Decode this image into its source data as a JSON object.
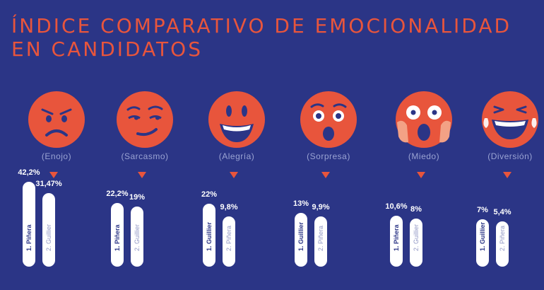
{
  "title": {
    "line1": "ÍNDICE COMPARATIVO DE EMOCIONALIDAD",
    "line2": "EN CANDIDATOS"
  },
  "colors": {
    "background": "#2b3586",
    "accent": "#e8553c",
    "bar": "#ffffff",
    "label": "#9aa3d3"
  },
  "chart_data": {
    "type": "bar",
    "title": "ÍNDICE COMPARATIVO DE EMOCIONALIDAD EN CANDIDATOS",
    "unit": "%",
    "groups": [
      {
        "emotion": "(Enojo)",
        "icon": "angry-face-icon",
        "bars": [
          {
            "label": "1. Piñera",
            "value": 42.2,
            "display": "42,2%"
          },
          {
            "label": "2. Guillier",
            "value": 31.47,
            "display": "31,47%"
          }
        ]
      },
      {
        "emotion": "(Sarcasmo)",
        "icon": "smirk-face-icon",
        "bars": [
          {
            "label": "1. Piñera",
            "value": 22.2,
            "display": "22,2%"
          },
          {
            "label": "2. Guillier",
            "value": 19,
            "display": "19%"
          }
        ]
      },
      {
        "emotion": "(Alegría)",
        "icon": "grin-face-icon",
        "bars": [
          {
            "label": "1. Guillier",
            "value": 22,
            "display": "22%"
          },
          {
            "label": "2. Piñera",
            "value": 9.8,
            "display": "9,8%"
          }
        ]
      },
      {
        "emotion": "(Sorpresa)",
        "icon": "surprised-face-icon",
        "bars": [
          {
            "label": "1. Guillier",
            "value": 13,
            "display": "13%"
          },
          {
            "label": "2. Piñera",
            "value": 9.9,
            "display": "9,9%"
          }
        ]
      },
      {
        "emotion": "(Miedo)",
        "icon": "scared-face-icon",
        "bars": [
          {
            "label": "1. Piñera",
            "value": 10.6,
            "display": "10,6%"
          },
          {
            "label": "2. Guillier",
            "value": 8,
            "display": "8%"
          }
        ]
      },
      {
        "emotion": "(Diversión)",
        "icon": "laughing-face-icon",
        "bars": [
          {
            "label": "1. Guillier",
            "value": 7,
            "display": "7%"
          },
          {
            "label": "2. Piñera",
            "value": 5.4,
            "display": "5,4%"
          }
        ]
      }
    ]
  }
}
